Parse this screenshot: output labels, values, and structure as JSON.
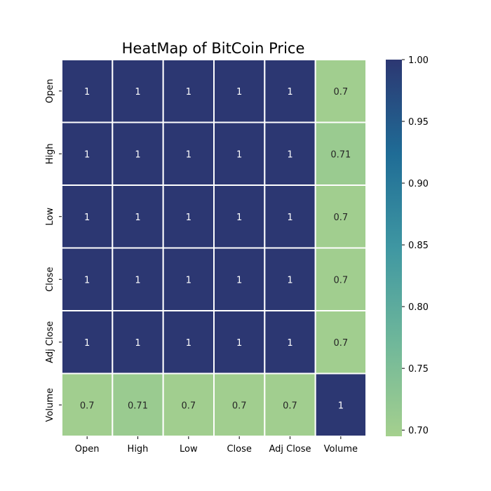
{
  "chart_data": {
    "type": "heatmap",
    "title": "HeatMap of BitCoin Price",
    "x_categories": [
      "Open",
      "High",
      "Low",
      "Close",
      "Adj Close",
      "Volume"
    ],
    "y_categories": [
      "Open",
      "High",
      "Low",
      "Close",
      "Adj Close",
      "Volume"
    ],
    "values": [
      [
        1,
        1,
        1,
        1,
        1,
        0.7
      ],
      [
        1,
        1,
        1,
        1,
        1,
        0.71
      ],
      [
        1,
        1,
        1,
        1,
        1,
        0.7
      ],
      [
        1,
        1,
        1,
        1,
        1,
        0.7
      ],
      [
        1,
        1,
        1,
        1,
        1,
        0.7
      ],
      [
        0.7,
        0.71,
        0.7,
        0.7,
        0.7,
        1
      ]
    ],
    "annotations": [
      [
        "1",
        "1",
        "1",
        "1",
        "1",
        "0.7"
      ],
      [
        "1",
        "1",
        "1",
        "1",
        "1",
        "0.71"
      ],
      [
        "1",
        "1",
        "1",
        "1",
        "1",
        "0.7"
      ],
      [
        "1",
        "1",
        "1",
        "1",
        "1",
        "0.7"
      ],
      [
        "1",
        "1",
        "1",
        "1",
        "1",
        "0.7"
      ],
      [
        "0.7",
        "0.71",
        "0.7",
        "0.7",
        "0.7",
        "1"
      ]
    ],
    "colorbar": {
      "range": [
        0.695,
        1.0
      ],
      "ticks": [
        1.0,
        0.95,
        0.9,
        0.85,
        0.8,
        0.75,
        0.7
      ],
      "tick_labels": [
        "1.00",
        "0.95",
        "0.90",
        "0.85",
        "0.80",
        "0.75",
        "0.70"
      ],
      "position": "right"
    },
    "colormap": [
      "#a5d08e",
      "#6fb79a",
      "#3f97a2",
      "#1f6c96",
      "#2c3772"
    ],
    "cell_border_color": "#ffffff",
    "annotation_color_dark_cells": "#ffffff",
    "annotation_color_light_cells": "#262626"
  }
}
